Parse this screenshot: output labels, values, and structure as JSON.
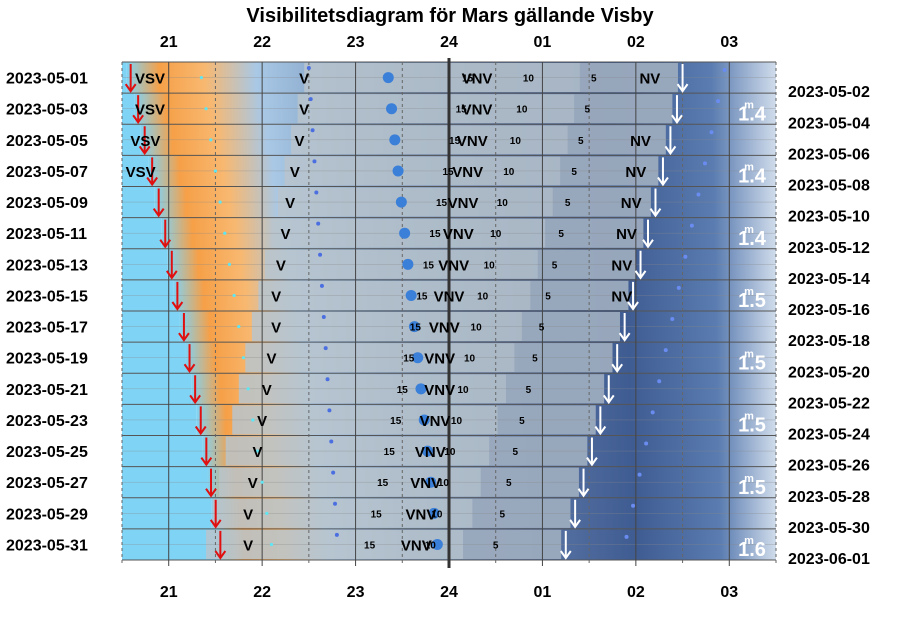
{
  "chart_data": {
    "type": "visibility-diagram",
    "title": "Visibilitetsdiagram för Mars gällande Visby",
    "x_axis": {
      "unit": "hour",
      "range_hours": [
        20.5,
        27.5
      ],
      "ticks": [
        {
          "h": 21,
          "label": "21"
        },
        {
          "h": 22,
          "label": "22"
        },
        {
          "h": 23,
          "label": "23"
        },
        {
          "h": 24,
          "label": "24"
        },
        {
          "h": 25,
          "label": "01"
        },
        {
          "h": 26,
          "label": "02"
        },
        {
          "h": 27,
          "label": "03"
        }
      ]
    },
    "rows": [
      {
        "left": "2023-05-01",
        "right": "2023-05-02"
      },
      {
        "left": "2023-05-03",
        "right": "2023-05-04"
      },
      {
        "left": "2023-05-05",
        "right": "2023-05-06"
      },
      {
        "left": "2023-05-07",
        "right": "2023-05-08"
      },
      {
        "left": "2023-05-09",
        "right": "2023-05-10"
      },
      {
        "left": "2023-05-11",
        "right": "2023-05-12"
      },
      {
        "left": "2023-05-13",
        "right": "2023-05-14"
      },
      {
        "left": "2023-05-15",
        "right": "2023-05-16"
      },
      {
        "left": "2023-05-17",
        "right": "2023-05-18"
      },
      {
        "left": "2023-05-19",
        "right": "2023-05-20"
      },
      {
        "left": "2023-05-21",
        "right": "2023-05-22"
      },
      {
        "left": "2023-05-23",
        "right": "2023-05-24"
      },
      {
        "left": "2023-05-25",
        "right": "2023-05-26"
      },
      {
        "left": "2023-05-27",
        "right": "2023-05-28"
      },
      {
        "left": "2023-05-29",
        "right": "2023-05-30"
      },
      {
        "left": "2023-05-31",
        "right": "2023-06-01"
      }
    ],
    "sunset_hours": [
      20.55,
      20.63,
      20.7,
      20.78,
      20.85,
      20.92,
      20.99,
      21.05,
      21.12,
      21.18,
      21.24,
      21.3,
      21.36,
      21.41,
      21.46,
      21.51
    ],
    "mars_set_hours": [
      26.5,
      26.44,
      26.37,
      26.29,
      26.21,
      26.13,
      26.05,
      25.97,
      25.88,
      25.8,
      25.71,
      25.62,
      25.53,
      25.44,
      25.35,
      25.25
    ],
    "altitude_labels": [
      "15",
      "10",
      "5"
    ],
    "direction_labels": [
      {
        "row": 0,
        "h": 20.8,
        "text": "VSV"
      },
      {
        "row": 1,
        "h": 20.8,
        "text": "VSV"
      },
      {
        "row": 2,
        "h": 20.75,
        "text": "VSV"
      },
      {
        "row": 3,
        "h": 20.7,
        "text": "VSV"
      },
      {
        "row": 0,
        "h": 22.45,
        "text": "V"
      },
      {
        "row": 2,
        "h": 22.4,
        "text": "V"
      },
      {
        "row": 4,
        "h": 22.3,
        "text": "V"
      },
      {
        "row": 6,
        "h": 22.2,
        "text": "V"
      },
      {
        "row": 8,
        "h": 22.15,
        "text": "V"
      },
      {
        "row": 10,
        "h": 22.05,
        "text": "V"
      },
      {
        "row": 12,
        "h": 21.95,
        "text": "V"
      },
      {
        "row": 14,
        "h": 21.85,
        "text": "V"
      },
      {
        "row": 1,
        "h": 22.45,
        "text": "V"
      },
      {
        "row": 3,
        "h": 22.35,
        "text": "V"
      },
      {
        "row": 5,
        "h": 22.25,
        "text": "V"
      },
      {
        "row": 7,
        "h": 22.15,
        "text": "V"
      },
      {
        "row": 9,
        "h": 22.1,
        "text": "V"
      },
      {
        "row": 11,
        "h": 22.0,
        "text": "V"
      },
      {
        "row": 13,
        "h": 21.9,
        "text": "V"
      },
      {
        "row": 15,
        "h": 21.85,
        "text": "V"
      },
      {
        "row": 0,
        "h": 24.3,
        "text": "VNV"
      },
      {
        "row": 1,
        "h": 24.3,
        "text": "VNV"
      },
      {
        "row": 2,
        "h": 24.25,
        "text": "VNV"
      },
      {
        "row": 3,
        "h": 24.2,
        "text": "VNV"
      },
      {
        "row": 4,
        "h": 24.15,
        "text": "VNV"
      },
      {
        "row": 5,
        "h": 24.1,
        "text": "VNV"
      },
      {
        "row": 6,
        "h": 24.05,
        "text": "VNV"
      },
      {
        "row": 7,
        "h": 24.0,
        "text": "VNV"
      },
      {
        "row": 8,
        "h": 23.95,
        "text": "VNV"
      },
      {
        "row": 9,
        "h": 23.9,
        "text": "VNV"
      },
      {
        "row": 10,
        "h": 23.9,
        "text": "VNV"
      },
      {
        "row": 11,
        "h": 23.85,
        "text": "VNV"
      },
      {
        "row": 12,
        "h": 23.8,
        "text": "VNV"
      },
      {
        "row": 13,
        "h": 23.75,
        "text": "VNV"
      },
      {
        "row": 14,
        "h": 23.7,
        "text": "VNV"
      },
      {
        "row": 15,
        "h": 23.65,
        "text": "VNV"
      },
      {
        "row": 0,
        "h": 26.15,
        "text": "NV"
      },
      {
        "row": 2,
        "h": 26.05,
        "text": "NV"
      },
      {
        "row": 3,
        "h": 26.0,
        "text": "NV"
      },
      {
        "row": 4,
        "h": 25.95,
        "text": "NV"
      },
      {
        "row": 5,
        "h": 25.9,
        "text": "NV"
      },
      {
        "row": 6,
        "h": 25.85,
        "text": "NV"
      },
      {
        "row": 7,
        "h": 25.85,
        "text": "NV"
      }
    ],
    "magnitudes": [
      {
        "row": 1,
        "text": "1.4"
      },
      {
        "row": 3,
        "text": "1.4"
      },
      {
        "row": 5,
        "text": "1.4"
      },
      {
        "row": 7,
        "text": "1.5"
      },
      {
        "row": 9,
        "text": "1.5"
      },
      {
        "row": 11,
        "text": "1.5"
      },
      {
        "row": 13,
        "text": "1.5"
      },
      {
        "row": 15,
        "text": "1.6"
      }
    ],
    "magnitude_unit": "m",
    "colors": {
      "day_sky": "#7fd3f5",
      "twilight_orange": "#f6a048",
      "night_dark": "#2e4a85",
      "mars_region": "#b9c4cc",
      "sunset_arrow": "#e01010",
      "set_arrow": "#ffffff",
      "dot": "#3a7fd8",
      "cyan_dot": "#5fe6f2",
      "grid": "#555555",
      "midnight_line": "#333333"
    }
  }
}
